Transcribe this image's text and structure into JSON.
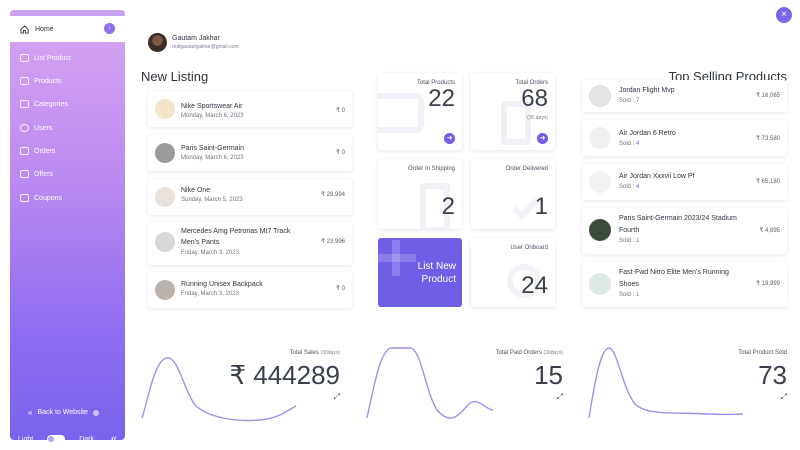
{
  "sidebar": {
    "home": "Home",
    "items": [
      {
        "label": "List Product",
        "icon": "list-plus-icon"
      },
      {
        "label": "Products",
        "icon": "bag-icon"
      },
      {
        "label": "Categories",
        "icon": "grid-icon"
      },
      {
        "label": "Users",
        "icon": "user-circle-icon"
      },
      {
        "label": "Orders",
        "icon": "bar-chart-icon"
      },
      {
        "label": "Offers",
        "icon": "tag-icon"
      },
      {
        "label": "Coupons",
        "icon": "coupon-icon"
      }
    ],
    "back": "Back to Website",
    "light": "Light",
    "dark": "Dark"
  },
  "profile": {
    "name": "Gautam Jakhar",
    "email": "realgautamjakhar@gmail.com"
  },
  "new_listing": {
    "title": "New Listing",
    "items": [
      {
        "name": "Nike Sportswear Air",
        "date": "Monday, March 6, 2023",
        "price": "₹ 0"
      },
      {
        "name": "Paris Saint-Germain",
        "date": "Monday, March 6, 2023",
        "price": "₹ 0"
      },
      {
        "name": "Nike One",
        "date": "Sunday, March 5, 2023",
        "price": "₹ 29,994"
      },
      {
        "name": "Mercedes Amg Petronas Mt7 Track Men's Pants",
        "date": "Friday, March 3, 2023",
        "price": "₹ 23,996"
      },
      {
        "name": "Running Unisex Backpack",
        "date": "Friday, March 3, 2023",
        "price": "₹ 0"
      }
    ]
  },
  "stats": {
    "total_products": {
      "label": "Total Products",
      "value": "22"
    },
    "total_orders": {
      "label": "Total Orders",
      "value": "68",
      "sub": "(30 days)"
    },
    "in_shipping": {
      "label": "Order In Shipping",
      "value": "2"
    },
    "delivered": {
      "label": "Order Delivered",
      "value": "1"
    },
    "list_new": {
      "line1": "List New",
      "line2": "Product"
    },
    "user_onboard": {
      "label": "User Onboard",
      "value": "24"
    }
  },
  "top_selling": {
    "title": "Top Selling Products",
    "sold_prefix": "Sold : ",
    "items": [
      {
        "name": "Jordan Flight Mvp",
        "sold": "7",
        "price": "₹ 16,065"
      },
      {
        "name": "Air Jordan 6 Retro",
        "sold": "4",
        "price": "₹ 73,580"
      },
      {
        "name": "Air Jordan Xxxvii Low Pf",
        "sold": "4",
        "price": "₹ 65,180"
      },
      {
        "name": "Paris Saint-Germain 2023/24 Stadium Fourth",
        "sold": "1",
        "price": "₹ 4,695"
      },
      {
        "name": "Fast-Fwd Nitro Elite Men's Running Shoes",
        "sold": "1",
        "price": "₹ 19,999"
      }
    ]
  },
  "bottom": {
    "sales": {
      "label": "Total Sales",
      "note": "(30days)",
      "value": "₹ 444289"
    },
    "paid_orders": {
      "label": "Total Paid Orders",
      "note": "(30days)",
      "value": "15"
    },
    "product_sold": {
      "label": "Total Product Sold",
      "value": "73"
    }
  },
  "colors": {
    "accent": "#6f5ee6",
    "sidebar_top": "#d7a6f3",
    "sidebar_bottom": "#7a63ec",
    "line": "#a58cef"
  }
}
